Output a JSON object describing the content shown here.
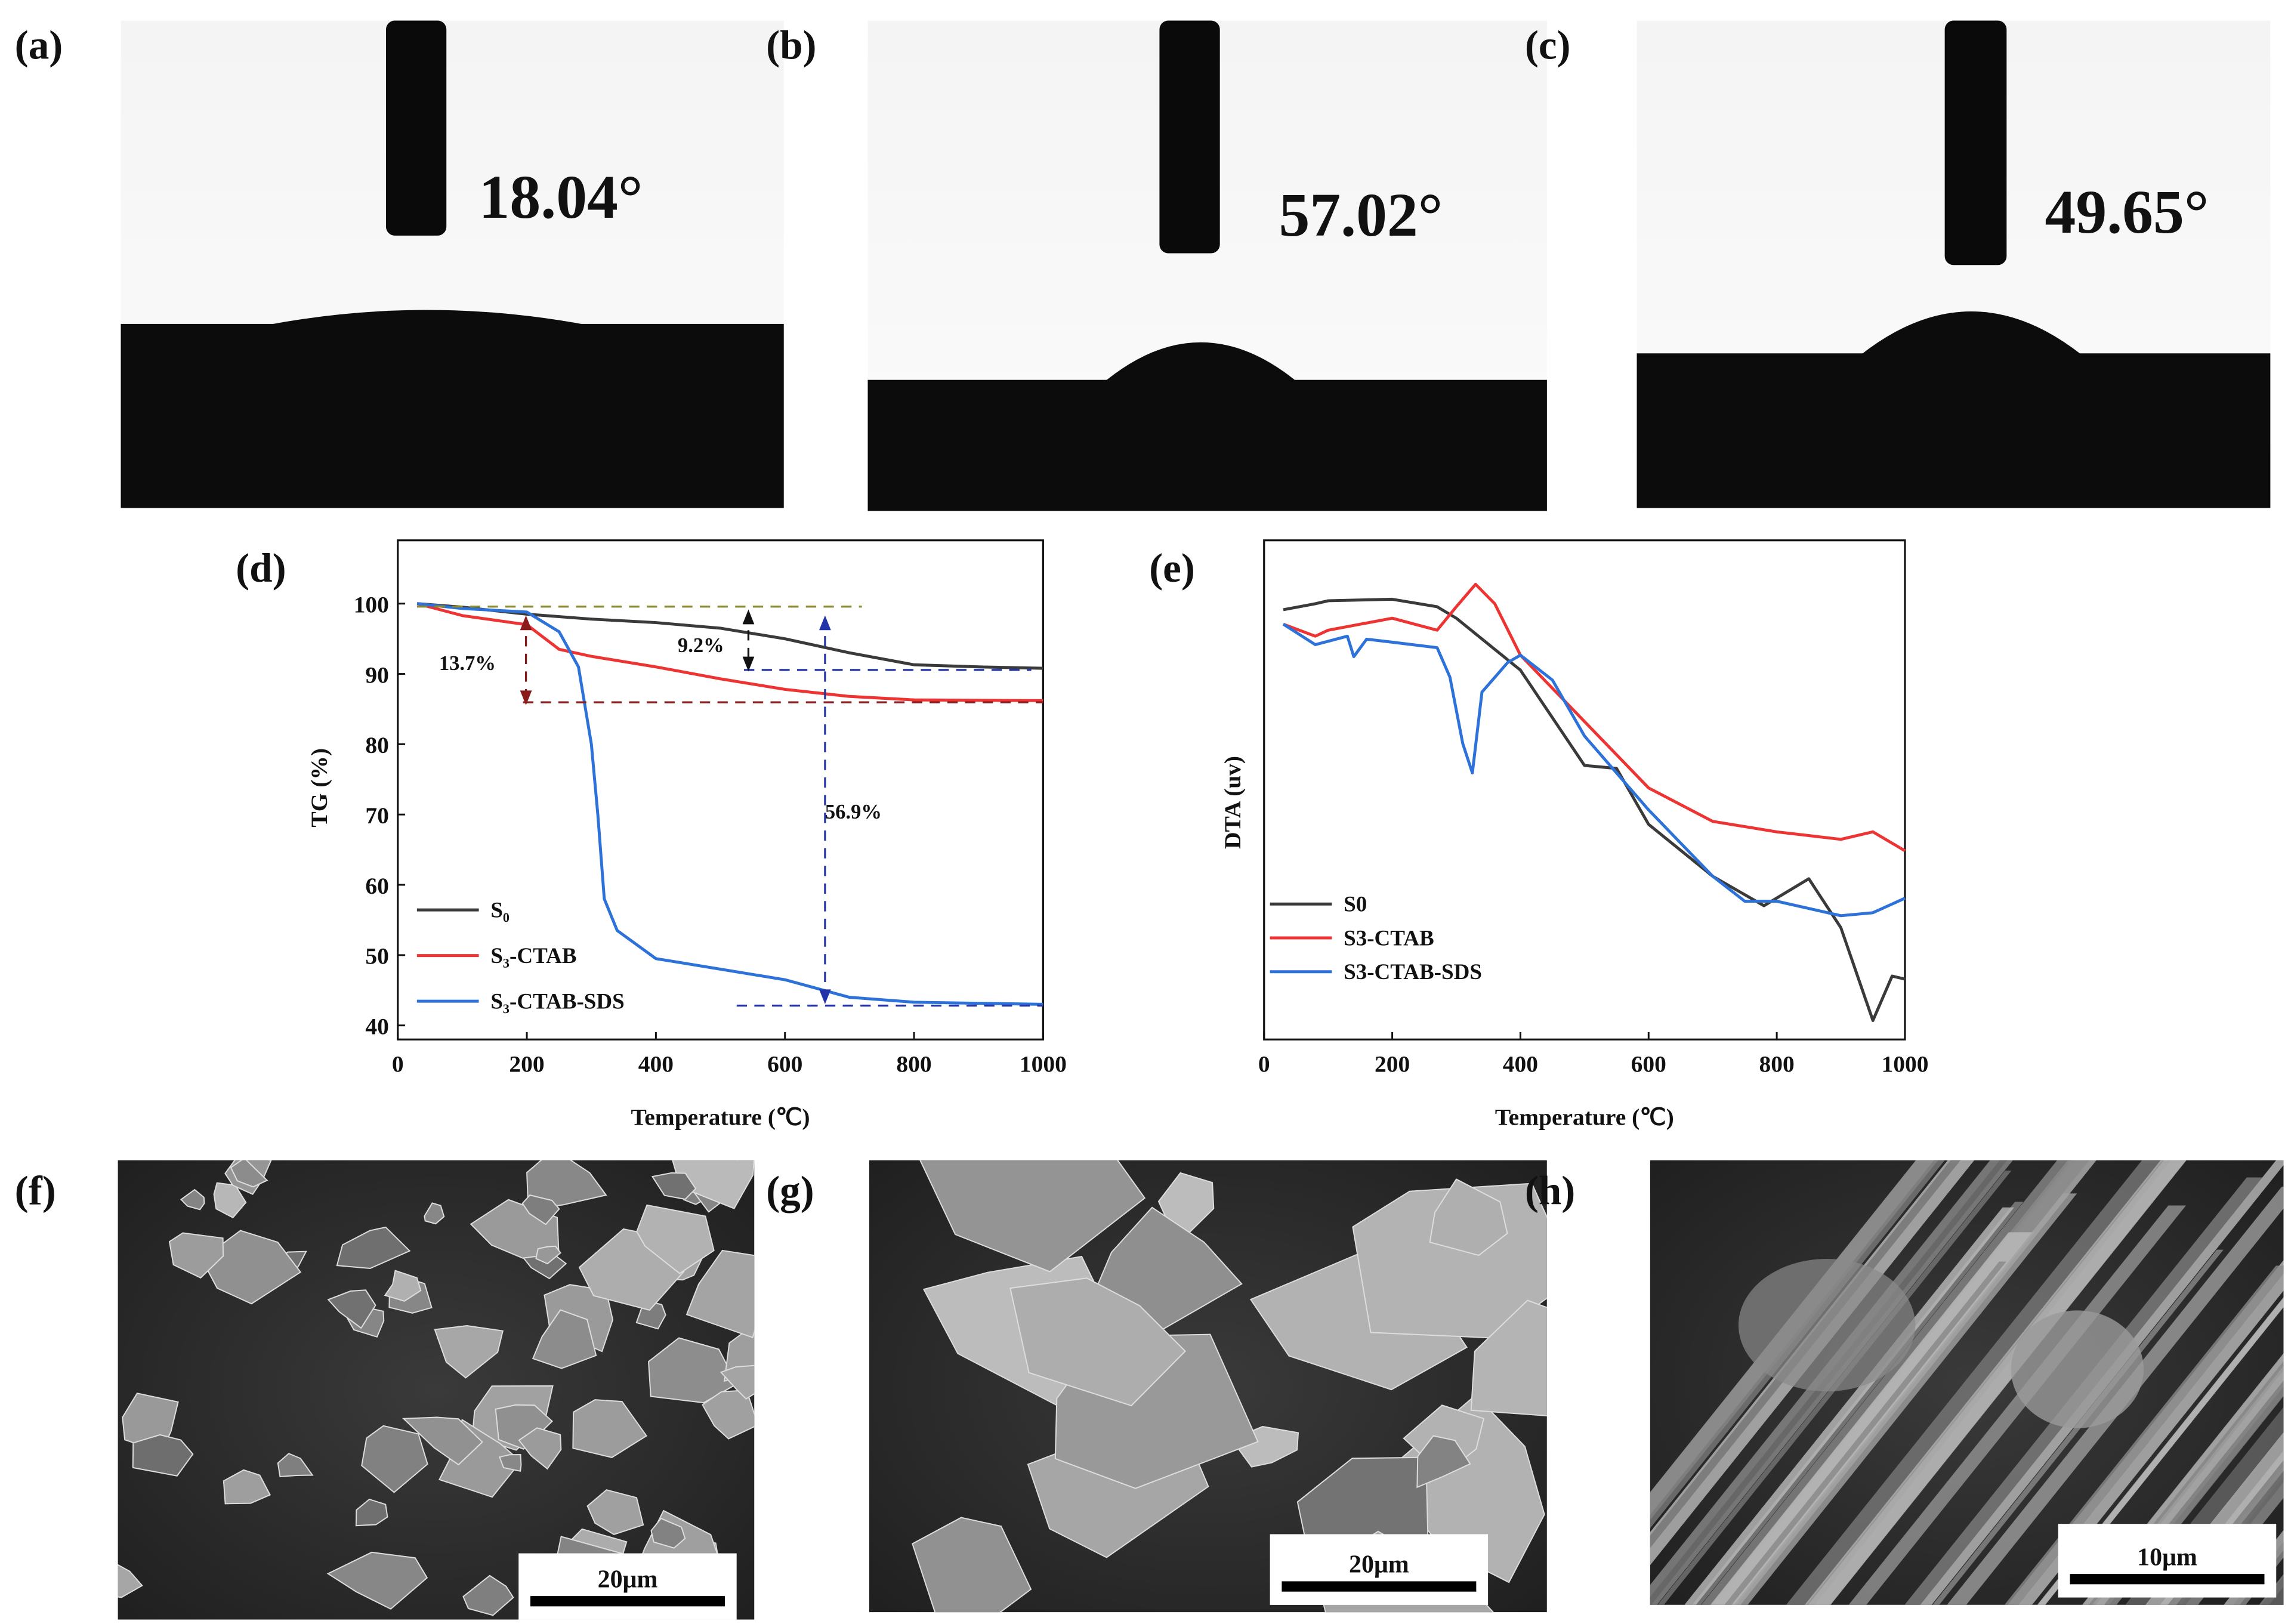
{
  "photos": [
    {
      "label": "(a)",
      "angle": "18.04°"
    },
    {
      "label": "(b)",
      "angle": "57.02°"
    },
    {
      "label": "(c)",
      "angle": "49.65°"
    }
  ],
  "sem": [
    {
      "label": "(f)",
      "scale_bar": "20μm"
    },
    {
      "label": "(g)",
      "scale_bar": "20μm"
    },
    {
      "label": "(h)",
      "scale_bar": "10μm"
    }
  ],
  "chart_data": [
    {
      "type": "line",
      "label": "(d)",
      "x_label": "Temperature (℃)",
      "y_label": "TG (%)",
      "xlim": [
        0,
        1000
      ],
      "ylim": [
        38,
        109
      ],
      "xticks": [
        0,
        200,
        400,
        600,
        800,
        1000
      ],
      "yticks": [
        40,
        50,
        60,
        70,
        80,
        90,
        100
      ],
      "grid": false,
      "legend": "lower-left",
      "annotations": [
        "9.2%",
        "13.7%",
        "56.9%"
      ],
      "series": [
        {
          "name": "S₀",
          "color": "#3a3a3a",
          "x": [
            30,
            100,
            200,
            300,
            400,
            500,
            600,
            700,
            800,
            900,
            1000
          ],
          "values": [
            100,
            99.5,
            98.5,
            97.8,
            97.3,
            96.5,
            95,
            93,
            91.3,
            91,
            90.8
          ]
        },
        {
          "name": "S₃-CTAB",
          "color": "#ee3333",
          "x": [
            30,
            100,
            200,
            250,
            300,
            400,
            500,
            600,
            700,
            800,
            1000
          ],
          "values": [
            100,
            98.3,
            97,
            93.5,
            92.5,
            91,
            89.3,
            87.8,
            86.8,
            86.3,
            86.2
          ]
        },
        {
          "name": "S₃-CTAB-SDS",
          "color": "#2d72d9",
          "x": [
            30,
            100,
            200,
            250,
            280,
            300,
            310,
            320,
            340,
            400,
            500,
            600,
            700,
            800,
            1000
          ],
          "values": [
            100,
            99.3,
            98.8,
            96,
            91,
            80,
            70,
            58,
            53.5,
            49.5,
            48,
            46.5,
            44,
            43.3,
            43
          ]
        }
      ]
    },
    {
      "type": "line",
      "label": "(e)",
      "x_label": "Temperature (℃)",
      "y_label": "DTA (uv)",
      "xlim": [
        0,
        1000
      ],
      "ylim": [
        0,
        100
      ],
      "xticks": [
        0,
        200,
        400,
        600,
        800,
        1000
      ],
      "grid": false,
      "legend": "lower-left",
      "series": [
        {
          "name": "S0",
          "color": "#3a3a3a",
          "x": [
            30,
            80,
            100,
            200,
            270,
            300,
            400,
            500,
            550,
            600,
            700,
            780,
            850,
            900,
            950,
            980,
            1000
          ],
          "values": [
            86.1,
            87.3,
            87.9,
            88.2,
            86.7,
            84.4,
            74.0,
            54.9,
            54.3,
            43.1,
            32.7,
            26.8,
            32.2,
            22.4,
            3.8,
            12.7,
            12.1
          ]
        },
        {
          "name": "S3-CTAB",
          "color": "#ee3333",
          "x": [
            30,
            80,
            100,
            200,
            270,
            300,
            330,
            360,
            400,
            500,
            600,
            700,
            800,
            900,
            950,
            1000
          ],
          "values": [
            83.2,
            80.8,
            82,
            84.4,
            82,
            86.7,
            91.2,
            87.3,
            77,
            63.7,
            50.4,
            43.7,
            41.6,
            40.1,
            41.6,
            37.8
          ]
        },
        {
          "name": "S3-CTAB-SDS",
          "color": "#2d72d9",
          "x": [
            30,
            80,
            130,
            140,
            160,
            200,
            270,
            290,
            310,
            325,
            340,
            380,
            400,
            450,
            500,
            600,
            700,
            750,
            800,
            900,
            950,
            1000
          ],
          "values": [
            83.2,
            79.1,
            80.8,
            76.7,
            80.2,
            79.6,
            78.5,
            72.6,
            59.3,
            53.4,
            69.6,
            75.5,
            77,
            72,
            60.8,
            46,
            32.7,
            27.7,
            27.7,
            24.8,
            25.4,
            28.3
          ]
        }
      ]
    }
  ]
}
